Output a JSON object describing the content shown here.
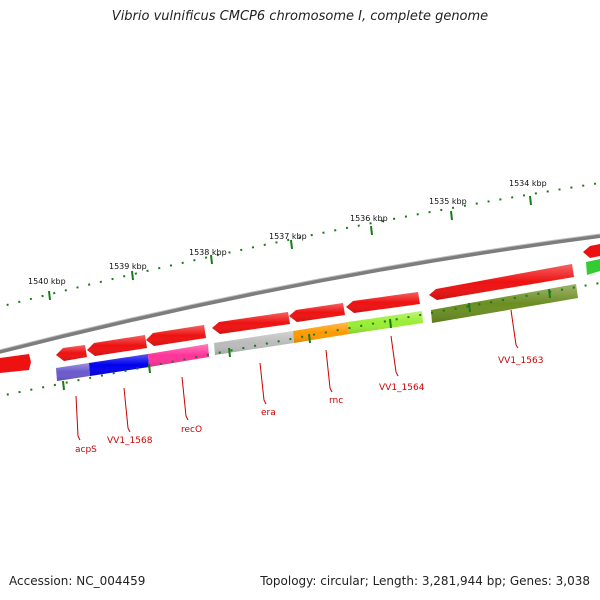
{
  "title": "Vibrio vulnificus CMCP6 chromosome I, complete genome",
  "footer": {
    "accession_label": "Accession:",
    "accession": "NC_004459",
    "topology_label": "Topology:",
    "topology": "circular",
    "length_label": "Length:",
    "length": "3,281,944 bp",
    "genes_label": "Genes:",
    "genes": "3,038"
  },
  "scale_labels": [
    "1540 kbp",
    "1539 kbp",
    "1538 kbp",
    "1537 kbp",
    "1536 kbp",
    "1535 kbp",
    "1534 kbp"
  ],
  "gene_labels": [
    "acpS",
    "VV1_1568",
    "recO",
    "era",
    "rnc",
    "VV1_1564",
    "VV1_1563"
  ],
  "colors": {
    "backbone": "#7d7d7d",
    "tick": "#1a7a1a",
    "label": "#cc0000",
    "gene_red": "#ee1111",
    "acpS": "#6a5acd",
    "VV1_1568": "#0000ee",
    "recO": "#ff3399",
    "era": "#bbbbbb",
    "rnc": "#ff9900",
    "VV1_1564": "#99ee33",
    "VV1_1563": "#6b8e23",
    "cog_green": "#33cc33"
  }
}
